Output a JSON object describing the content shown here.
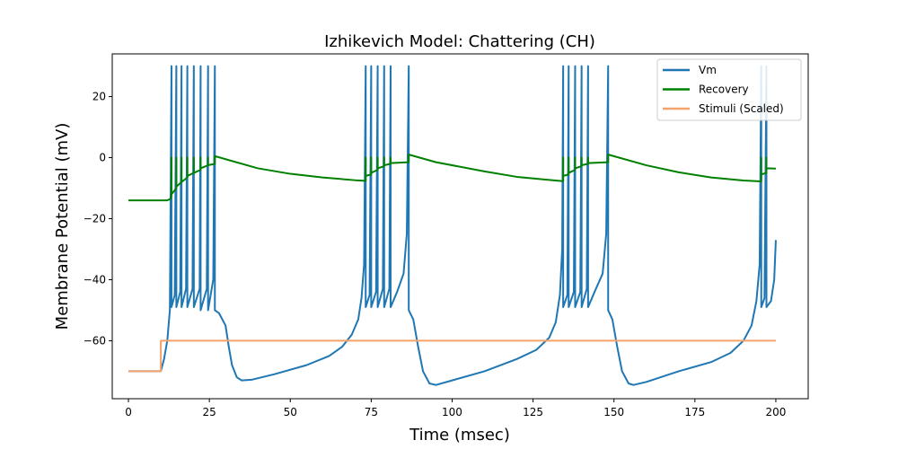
{
  "chart_data": {
    "type": "line",
    "title": "Izhikevich Model: Chattering (CH)",
    "xlabel": "Time (msec)",
    "ylabel": "Membrane Potential (mV)",
    "xlim": [
      -5,
      210
    ],
    "ylim": [
      -79,
      34
    ],
    "xticks": [
      0,
      25,
      50,
      75,
      100,
      125,
      150,
      175,
      200
    ],
    "yticks": [
      -60,
      -40,
      -20,
      0,
      20
    ],
    "grid": false,
    "legend_position": "top-right",
    "colors": {
      "Vm": "#1f77b4",
      "Recovery": "#008000",
      "Stimuli (Scaled)": "#f4a36b"
    },
    "series": [
      {
        "name": "Vm",
        "points": [
          [
            0,
            -70
          ],
          [
            10,
            -70
          ],
          [
            11,
            -66
          ],
          [
            12,
            -60
          ],
          [
            12.8,
            -50
          ],
          [
            13.3,
            30
          ],
          [
            13.3,
            -49
          ],
          [
            14.3,
            -45
          ],
          [
            14.8,
            30
          ],
          [
            14.8,
            -49
          ],
          [
            16,
            -44
          ],
          [
            16.4,
            30
          ],
          [
            16.4,
            -49
          ],
          [
            17.8,
            -43
          ],
          [
            18.2,
            30
          ],
          [
            18.2,
            -49
          ],
          [
            19.8,
            -43
          ],
          [
            20.2,
            30
          ],
          [
            20.2,
            -49
          ],
          [
            22,
            -43
          ],
          [
            22.3,
            30
          ],
          [
            22.3,
            -50
          ],
          [
            24.2,
            -43
          ],
          [
            24.6,
            30
          ],
          [
            24.6,
            -50
          ],
          [
            26.2,
            -40
          ],
          [
            26.7,
            30
          ],
          [
            26.7,
            -50
          ],
          [
            28,
            -51
          ],
          [
            30,
            -55
          ],
          [
            31,
            -62
          ],
          [
            32,
            -68
          ],
          [
            33.5,
            -72
          ],
          [
            35,
            -73
          ],
          [
            38,
            -72.8
          ],
          [
            45,
            -71
          ],
          [
            55,
            -68
          ],
          [
            62,
            -65
          ],
          [
            66,
            -62
          ],
          [
            69,
            -58
          ],
          [
            71,
            -53
          ],
          [
            72,
            -46
          ],
          [
            72.8,
            -35
          ],
          [
            73.3,
            30
          ],
          [
            73.3,
            -49
          ],
          [
            74.5,
            -45
          ],
          [
            75,
            30
          ],
          [
            75,
            -49
          ],
          [
            76.5,
            -44
          ],
          [
            77,
            30
          ],
          [
            77,
            -49
          ],
          [
            78.6,
            -43
          ],
          [
            79,
            30
          ],
          [
            79,
            -49
          ],
          [
            80.6,
            -43
          ],
          [
            81,
            30
          ],
          [
            81,
            -49
          ],
          [
            83,
            -44
          ],
          [
            85,
            -38
          ],
          [
            86,
            -25
          ],
          [
            86.6,
            30
          ],
          [
            86.6,
            -50
          ],
          [
            88,
            -53
          ],
          [
            89.5,
            -62
          ],
          [
            91,
            -70
          ],
          [
            93,
            -74
          ],
          [
            95,
            -74.5
          ],
          [
            100,
            -73
          ],
          [
            110,
            -70
          ],
          [
            120,
            -66
          ],
          [
            126,
            -63
          ],
          [
            130,
            -59
          ],
          [
            132,
            -54
          ],
          [
            133.3,
            -45
          ],
          [
            134,
            -30
          ],
          [
            134.3,
            30
          ],
          [
            134.3,
            -49
          ],
          [
            135.6,
            -45
          ],
          [
            136,
            30
          ],
          [
            136,
            -49
          ],
          [
            137.6,
            -44
          ],
          [
            138,
            30
          ],
          [
            138,
            -49
          ],
          [
            139.6,
            -44
          ],
          [
            140,
            30
          ],
          [
            140,
            -49
          ],
          [
            141.6,
            -43
          ],
          [
            142,
            30
          ],
          [
            142,
            -49
          ],
          [
            144,
            -44
          ],
          [
            146.5,
            -38
          ],
          [
            147.6,
            -25
          ],
          [
            148.2,
            30
          ],
          [
            148.2,
            -50
          ],
          [
            149.5,
            -53
          ],
          [
            151,
            -62
          ],
          [
            152.5,
            -70
          ],
          [
            154.5,
            -74
          ],
          [
            156,
            -74.5
          ],
          [
            160,
            -73.5
          ],
          [
            170,
            -70
          ],
          [
            180,
            -67
          ],
          [
            186,
            -64
          ],
          [
            190,
            -60
          ],
          [
            192.5,
            -55
          ],
          [
            194,
            -47
          ],
          [
            195,
            -35
          ],
          [
            195.5,
            30
          ],
          [
            195.5,
            -49
          ],
          [
            196.5,
            -46
          ],
          [
            197.1,
            30
          ],
          [
            197.1,
            -49
          ],
          [
            198.5,
            -47
          ],
          [
            199.5,
            -40
          ],
          [
            200,
            -27
          ]
        ]
      },
      {
        "name": "Recovery",
        "points": [
          [
            0,
            -14
          ],
          [
            12,
            -14
          ],
          [
            13,
            -13.5
          ],
          [
            13.3,
            -12
          ],
          [
            13.3,
            0
          ],
          [
            13.3,
            -12
          ],
          [
            14.8,
            -10
          ],
          [
            14.8,
            0
          ],
          [
            14.8,
            -9.5
          ],
          [
            16.4,
            -8
          ],
          [
            16.4,
            0
          ],
          [
            16.4,
            -8
          ],
          [
            18.2,
            -6.5
          ],
          [
            18.2,
            0
          ],
          [
            18.2,
            -6
          ],
          [
            20.2,
            -5
          ],
          [
            20.2,
            0
          ],
          [
            20.2,
            -5
          ],
          [
            22.3,
            -4
          ],
          [
            22.3,
            0
          ],
          [
            22.3,
            -3.5
          ],
          [
            24.6,
            -2.5
          ],
          [
            24.6,
            0
          ],
          [
            24.6,
            -2.5
          ],
          [
            26.7,
            -2
          ],
          [
            26.7,
            0
          ],
          [
            26.7,
            0.5
          ],
          [
            30,
            -0.5
          ],
          [
            40,
            -3.5
          ],
          [
            50,
            -5.3
          ],
          [
            60,
            -6.5
          ],
          [
            70,
            -7.4
          ],
          [
            73.3,
            -7.6
          ],
          [
            73.3,
            0
          ],
          [
            73.3,
            -6
          ],
          [
            75,
            -5.5
          ],
          [
            75,
            0
          ],
          [
            75,
            -5
          ],
          [
            77,
            -4
          ],
          [
            77,
            0
          ],
          [
            77,
            -3.5
          ],
          [
            79,
            -2.8
          ],
          [
            79,
            0
          ],
          [
            79,
            -2.5
          ],
          [
            81,
            -2
          ],
          [
            81,
            0
          ],
          [
            81,
            -1.8
          ],
          [
            86.6,
            -1.5
          ],
          [
            86.6,
            1
          ],
          [
            95,
            -1.5
          ],
          [
            110,
            -4.5
          ],
          [
            120,
            -6.3
          ],
          [
            130,
            -7.3
          ],
          [
            134.3,
            -7.7
          ],
          [
            134.3,
            0
          ],
          [
            134.3,
            -6
          ],
          [
            136,
            -5.5
          ],
          [
            136,
            0
          ],
          [
            136,
            -5
          ],
          [
            138,
            -4
          ],
          [
            138,
            0
          ],
          [
            138,
            -3.5
          ],
          [
            140,
            -2.8
          ],
          [
            140,
            0
          ],
          [
            140,
            -2.5
          ],
          [
            142,
            -2
          ],
          [
            142,
            0
          ],
          [
            142,
            -1.8
          ],
          [
            148.2,
            -1.5
          ],
          [
            148.2,
            1
          ],
          [
            160,
            -2.5
          ],
          [
            170,
            -4.8
          ],
          [
            180,
            -6.5
          ],
          [
            190,
            -7.5
          ],
          [
            195.5,
            -7.8
          ],
          [
            195.5,
            0
          ],
          [
            195.5,
            -5.5
          ],
          [
            197.1,
            -5
          ],
          [
            197.1,
            0
          ],
          [
            197.1,
            -3.5
          ],
          [
            200,
            -3.6
          ]
        ]
      },
      {
        "name": "Stimuli (Scaled)",
        "points": [
          [
            0,
            -70
          ],
          [
            10,
            -70
          ],
          [
            10,
            -60
          ],
          [
            200,
            -60
          ]
        ]
      }
    ]
  }
}
